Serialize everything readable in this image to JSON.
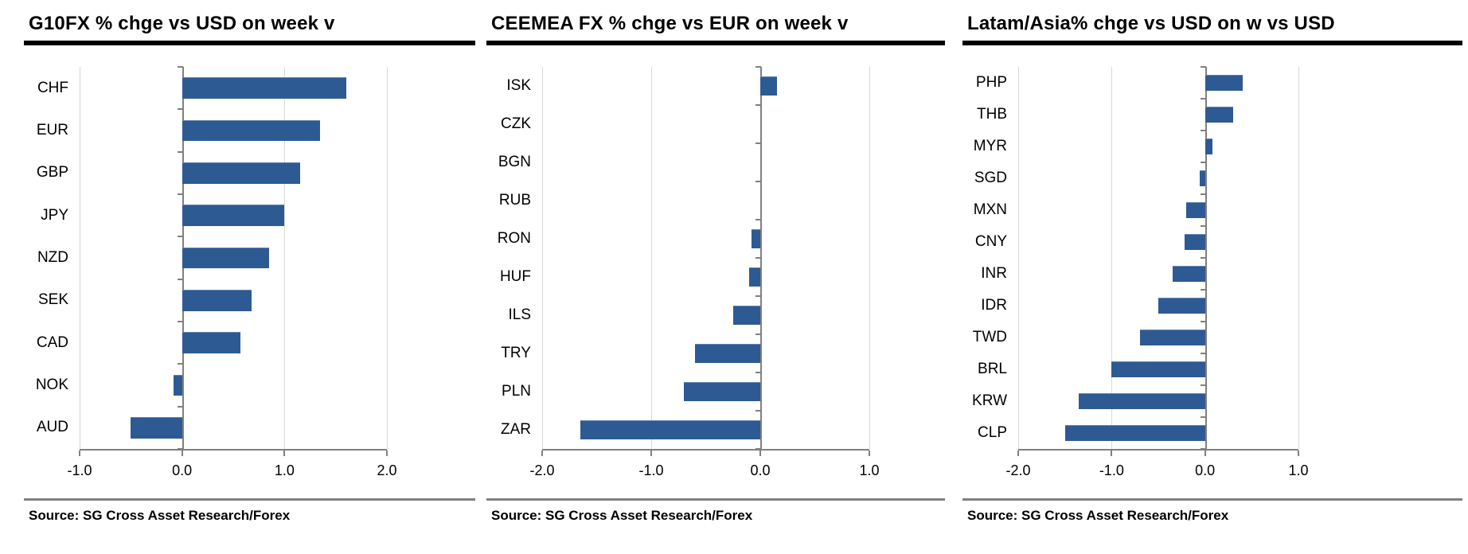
{
  "colors": {
    "bar": "#2E5A94",
    "axis": "#808080",
    "gridline": "#D9D9D9",
    "title_rule": "#000000",
    "source_rule": "#808080"
  },
  "chart_data": [
    {
      "type": "bar",
      "orientation": "horizontal",
      "title": "G10FX % chge vs USD on week v",
      "categories": [
        "CHF",
        "EUR",
        "GBP",
        "JPY",
        "NZD",
        "SEK",
        "CAD",
        "NOK",
        "AUD"
      ],
      "values": [
        1.6,
        1.35,
        1.15,
        1.0,
        0.85,
        0.68,
        0.57,
        -0.08,
        -0.5
      ],
      "xlabel": "",
      "ylabel": "",
      "xlim": [
        -1.0,
        2.0
      ],
      "xtick_values": [
        -1.0,
        0.0,
        1.0,
        2.0
      ],
      "xtick_labels": [
        "-1.0",
        "0.0",
        "1.0",
        "2.0"
      ],
      "grid": "vertical-ticks-only",
      "legend": "none",
      "source": "Source: SG Cross Asset Research/Forex"
    },
    {
      "type": "bar",
      "orientation": "horizontal",
      "title": "CEEMEA FX % chge vs EUR on week v",
      "categories": [
        "ISK",
        "CZK",
        "BGN",
        "RUB",
        "RON",
        "HUF",
        "ILS",
        "TRY",
        "PLN",
        "ZAR"
      ],
      "values": [
        0.15,
        0.0,
        0.0,
        0.0,
        -0.08,
        -0.1,
        -0.25,
        -0.6,
        -0.7,
        -1.65
      ],
      "xlabel": "",
      "ylabel": "",
      "xlim": [
        -2.0,
        1.0
      ],
      "xtick_values": [
        -2.0,
        -1.0,
        0.0,
        1.0
      ],
      "xtick_labels": [
        "-2.0",
        "-1.0",
        "0.0",
        "1.0"
      ],
      "grid": "vertical-ticks-only",
      "legend": "none",
      "source": "Source: SG Cross Asset Research/Forex"
    },
    {
      "type": "bar",
      "orientation": "horizontal",
      "title": "Latam/Asia% chge vs USD on w vs USD",
      "categories": [
        "PHP",
        "THB",
        "MYR",
        "SGD",
        "MXN",
        "CNY",
        "INR",
        "IDR",
        "TWD",
        "BRL",
        "KRW",
        "CLP"
      ],
      "values": [
        0.4,
        0.3,
        0.08,
        -0.06,
        -0.2,
        -0.22,
        -0.35,
        -0.5,
        -0.7,
        -1.0,
        -1.35,
        -1.5
      ],
      "xlabel": "",
      "ylabel": "",
      "xlim": [
        -2.0,
        1.0
      ],
      "xtick_values": [
        -2.0,
        -1.0,
        0.0,
        1.0
      ],
      "xtick_labels": [
        "-2.0",
        "-1.0",
        "0.0",
        "1.0"
      ],
      "grid": "vertical-ticks-only",
      "legend": "none",
      "source": "Source: SG Cross Asset Research/Forex"
    }
  ]
}
